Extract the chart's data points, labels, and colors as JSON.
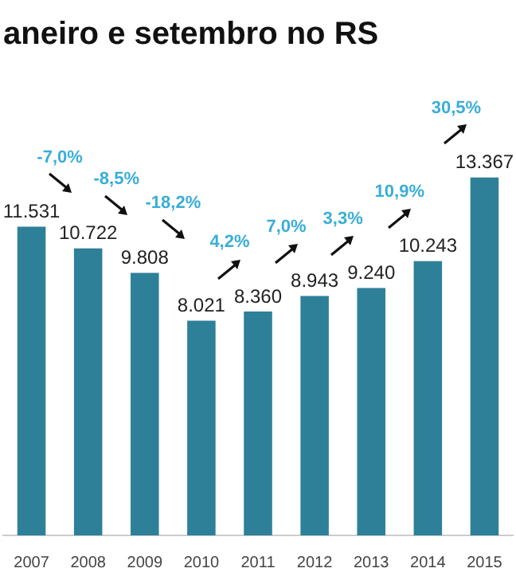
{
  "chart_data": {
    "type": "bar",
    "title": "aneiro e setembro no RS",
    "categories": [
      "2007",
      "2008",
      "2009",
      "2010",
      "2011",
      "2012",
      "2013",
      "2014",
      "2015"
    ],
    "values": [
      11531,
      10722,
      9808,
      8021,
      8360,
      8943,
      9240,
      10243,
      13367
    ],
    "color": "#2e8099",
    "grid": false,
    "legend": false,
    "value_labels": [
      "11.531",
      "10.722",
      "9.808",
      "8.021",
      "8.360",
      "8.943",
      "9.240",
      "10.243",
      "13.367"
    ],
    "annotations": [
      "-7,0%",
      "-8,5%",
      "-18,2%",
      "4,2%",
      "7,0%",
      "3,3%",
      "10,9%",
      "30,5%"
    ]
  }
}
